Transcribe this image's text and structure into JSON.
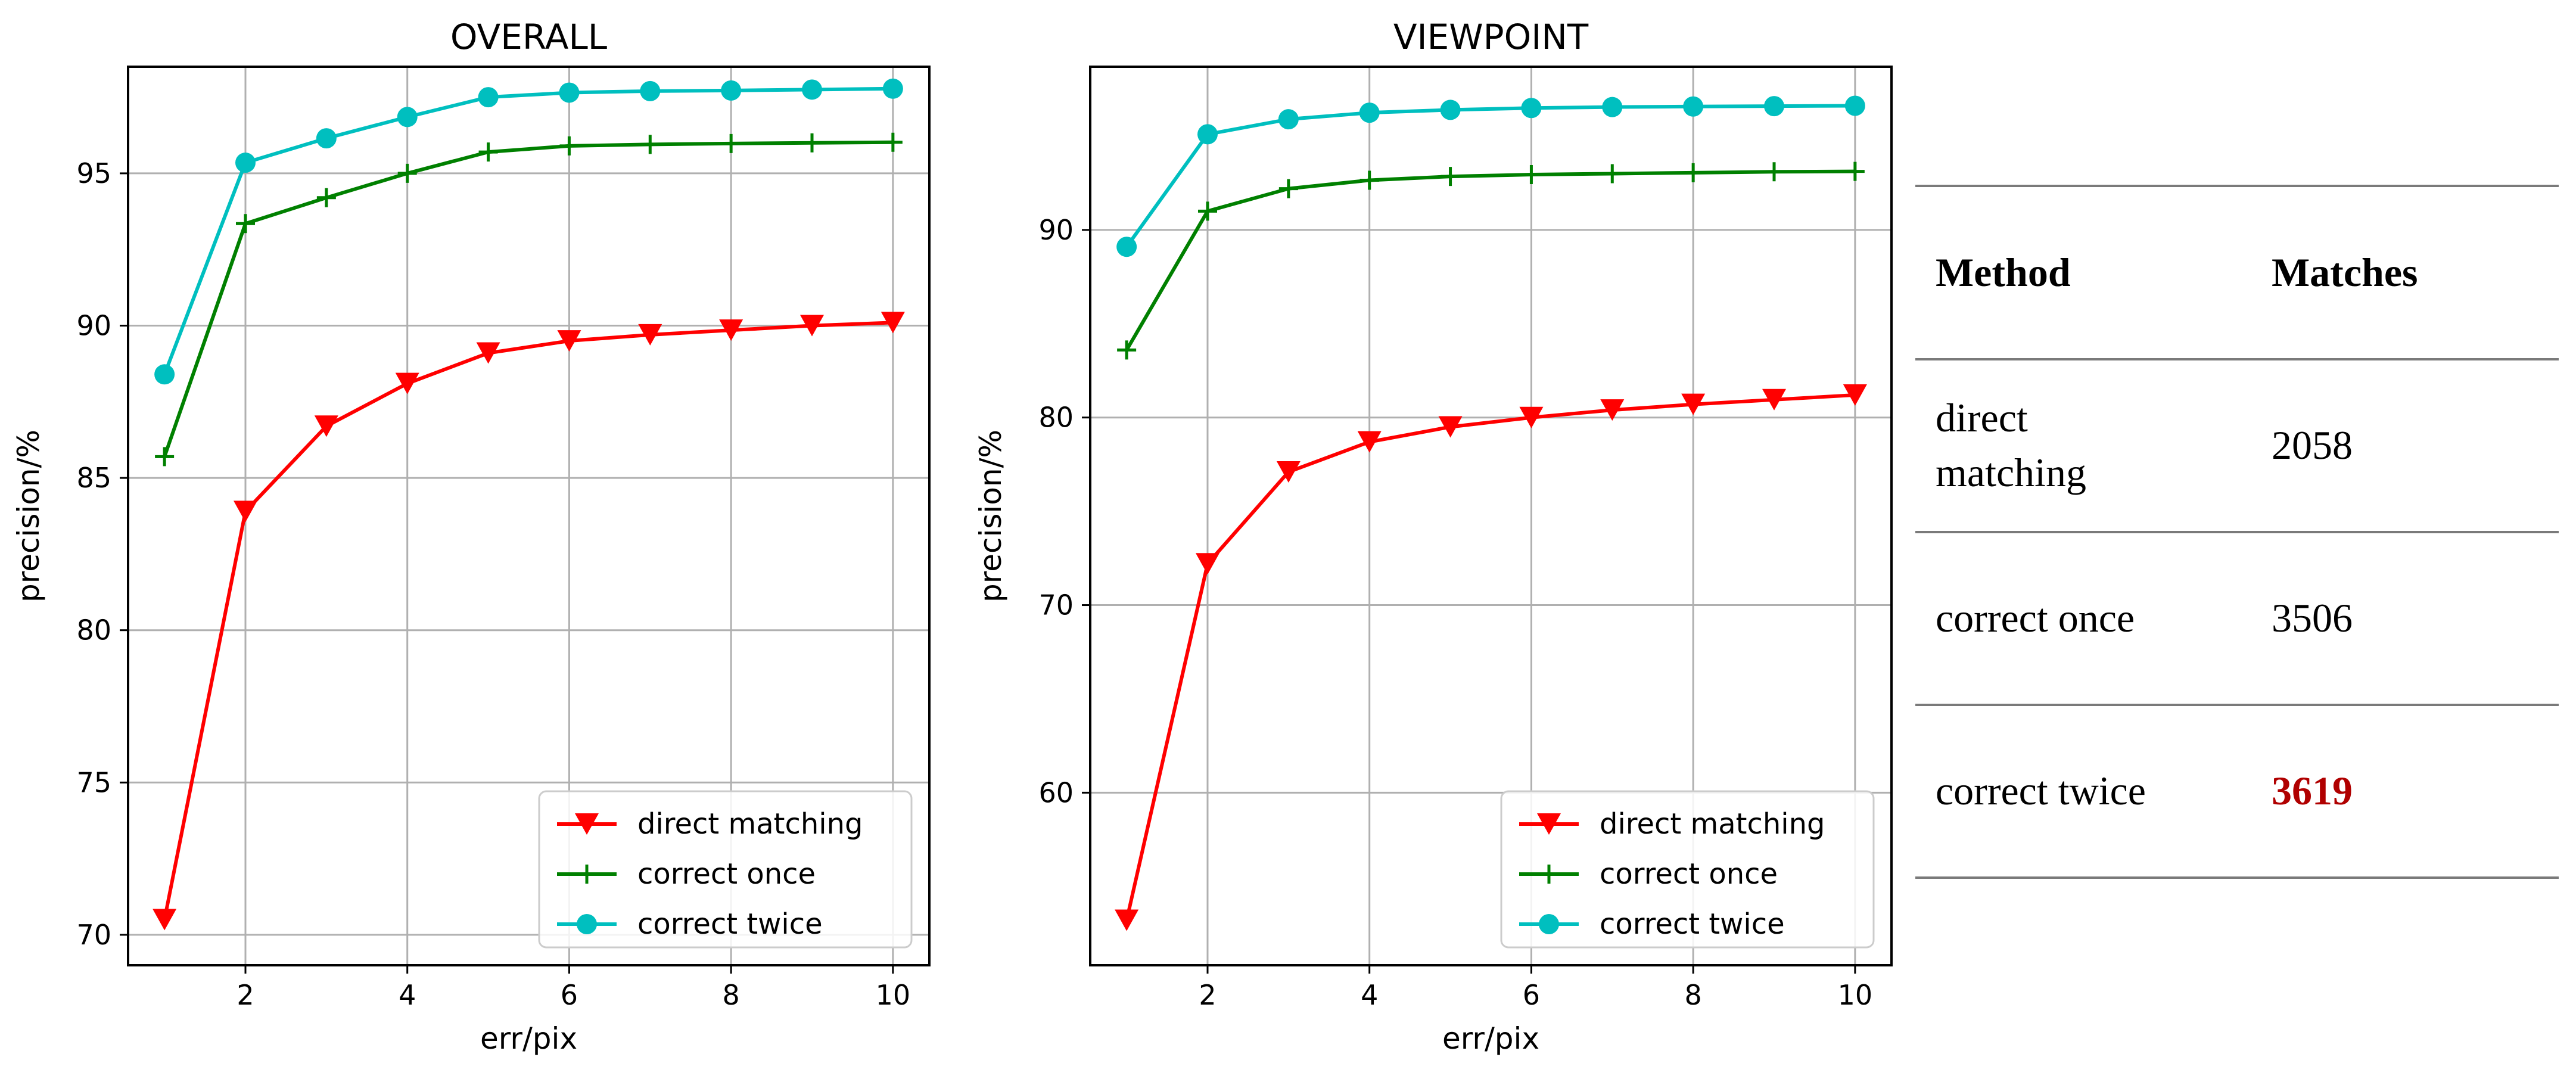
{
  "chart_data": [
    {
      "type": "line",
      "title": "OVERALL",
      "xlabel": "err/pix",
      "ylabel": "precision/%",
      "xlim": [
        0.55,
        10.45
      ],
      "ylim": [
        69.0,
        98.5
      ],
      "xticks": [
        2,
        4,
        6,
        8,
        10
      ],
      "yticks": [
        70,
        75,
        80,
        85,
        90,
        95
      ],
      "grid": true,
      "legend_position": "lower-right",
      "x": [
        1,
        2,
        3,
        4,
        5,
        6,
        7,
        8,
        9,
        10
      ],
      "series": [
        {
          "name": "direct matching",
          "color": "#ff0000",
          "marker": "triangle-down",
          "values": [
            70.5,
            83.9,
            86.7,
            88.1,
            89.1,
            89.5,
            89.7,
            89.85,
            90.0,
            90.1
          ]
        },
        {
          "name": "correct once",
          "color": "#008000",
          "marker": "plus",
          "values": [
            85.7,
            93.35,
            94.2,
            95.0,
            95.7,
            95.9,
            95.95,
            95.98,
            96.0,
            96.02
          ]
        },
        {
          "name": "correct twice",
          "color": "#00bfbf",
          "marker": "circle",
          "values": [
            88.4,
            95.35,
            96.15,
            96.85,
            97.5,
            97.65,
            97.7,
            97.72,
            97.75,
            97.78
          ]
        }
      ]
    },
    {
      "type": "line",
      "title": "VIEWPOINT",
      "xlabel": "err/pix",
      "ylabel": "precision/%",
      "xlim": [
        0.55,
        10.45
      ],
      "ylim": [
        50.8,
        98.7
      ],
      "xticks": [
        2,
        4,
        6,
        8,
        10
      ],
      "yticks": [
        60,
        70,
        80,
        90
      ],
      "grid": true,
      "legend_position": "lower-right",
      "x": [
        1,
        2,
        3,
        4,
        5,
        6,
        7,
        8,
        9,
        10
      ],
      "series": [
        {
          "name": "direct matching",
          "color": "#ff0000",
          "marker": "triangle-down",
          "values": [
            53.2,
            72.2,
            77.1,
            78.7,
            79.5,
            80.0,
            80.4,
            80.7,
            80.95,
            81.2
          ]
        },
        {
          "name": "correct once",
          "color": "#008000",
          "marker": "plus",
          "values": [
            83.6,
            91.0,
            92.2,
            92.65,
            92.85,
            92.95,
            93.0,
            93.05,
            93.1,
            93.12
          ]
        },
        {
          "name": "correct twice",
          "color": "#00bfbf",
          "marker": "circle",
          "values": [
            89.1,
            95.1,
            95.9,
            96.25,
            96.4,
            96.5,
            96.55,
            96.58,
            96.6,
            96.62
          ]
        }
      ]
    }
  ],
  "table": {
    "headers": {
      "method": "Method",
      "matches": "Matches"
    },
    "rows": [
      {
        "method": "direct matching",
        "matches": "2058",
        "highlight": false
      },
      {
        "method": "correct once",
        "matches": "3506",
        "highlight": false
      },
      {
        "method": "correct twice",
        "matches": "3619",
        "highlight": true
      }
    ],
    "highlight_color": "#b00000"
  }
}
